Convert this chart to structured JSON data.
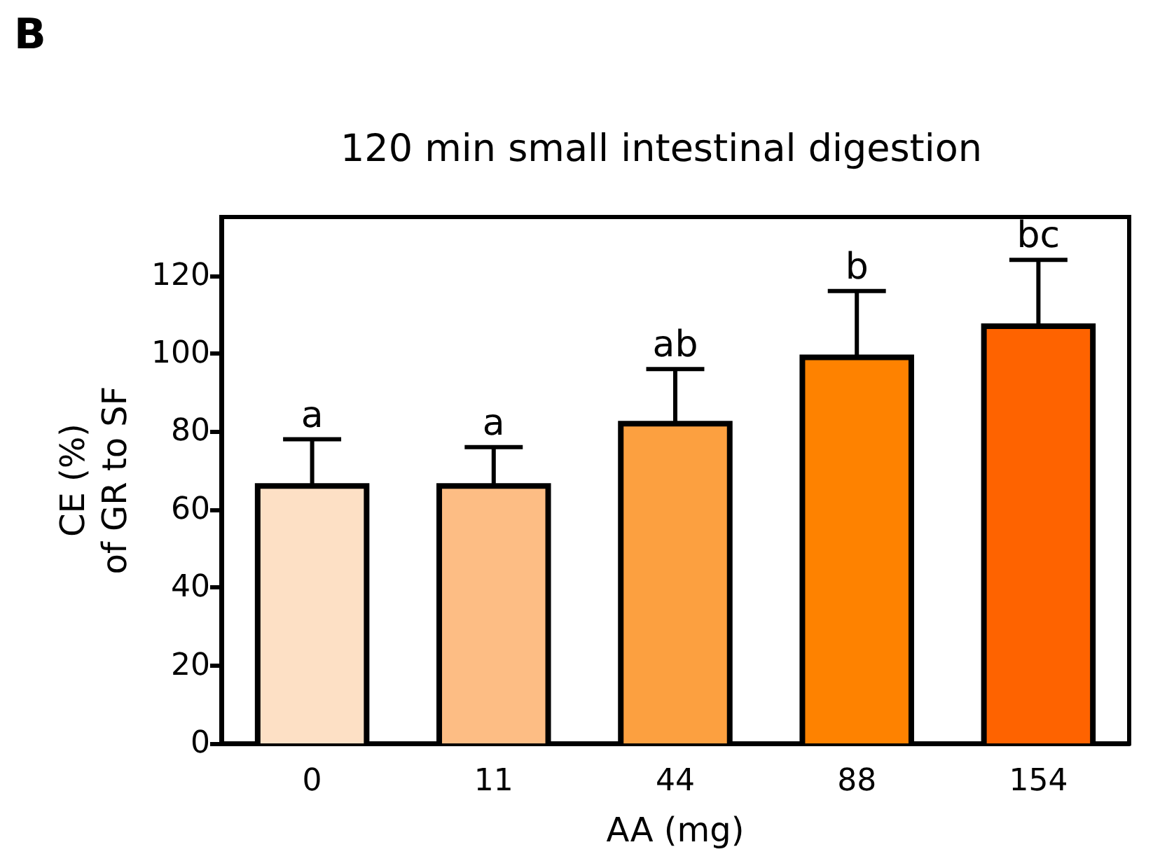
{
  "chart_data": {
    "type": "bar",
    "title": "120 min small intestinal digestion",
    "xlabel": "AA (mg)",
    "ylabel": "CE (%)\nof GR to SF",
    "categories": [
      "0",
      "11",
      "44",
      "88",
      "154"
    ],
    "values": [
      66,
      66,
      82,
      99,
      107
    ],
    "colors": [
      "#fde0c5",
      "#fdbd84",
      "#fca040",
      "#fe8200",
      "#fe6300"
    ],
    "errors": [
      [
        66,
        78
      ],
      [
        66,
        76
      ],
      [
        82,
        96
      ],
      [
        99,
        116
      ],
      [
        107,
        124
      ]
    ],
    "ylim": [
      0,
      135
    ],
    "yticks": [
      0,
      20,
      40,
      60,
      80,
      100,
      120
    ],
    "grid": false,
    "annotations": [
      "B",
      {
        "text": "a",
        "x": "0",
        "y": 78
      },
      {
        "text": "a",
        "x": "11",
        "y": 76
      },
      {
        "text": "ab",
        "x": "44",
        "y": 96
      },
      {
        "text": "b",
        "x": "88",
        "y": 116
      },
      {
        "text": "bc",
        "x": "154",
        "y": 124
      }
    ]
  }
}
